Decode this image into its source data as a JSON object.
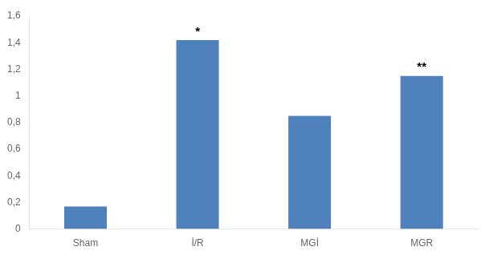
{
  "chart_data": {
    "type": "bar",
    "categories": [
      "Sham",
      "İ/R",
      "MGİ",
      "MGR"
    ],
    "values": [
      0.17,
      1.42,
      0.85,
      1.15
    ],
    "color": "#4f81bd",
    "ylim": [
      0,
      1.6
    ],
    "yticks": [
      0,
      {
        "value": 0.2,
        "label": "0,2"
      },
      {
        "value": 0.4,
        "label": "0,4"
      },
      {
        "value": 0.6,
        "label": "0,6"
      },
      {
        "value": 0.8,
        "label": "0,8"
      },
      1,
      {
        "value": 1.2,
        "label": "1,2"
      },
      {
        "value": 1.4,
        "label": "1,4"
      },
      {
        "value": 1.6,
        "label": "1,6"
      }
    ],
    "grid": false,
    "annotations": [
      {
        "text": "*",
        "category": "İ/R"
      },
      {
        "text": "**",
        "category": "MGR"
      }
    ]
  }
}
